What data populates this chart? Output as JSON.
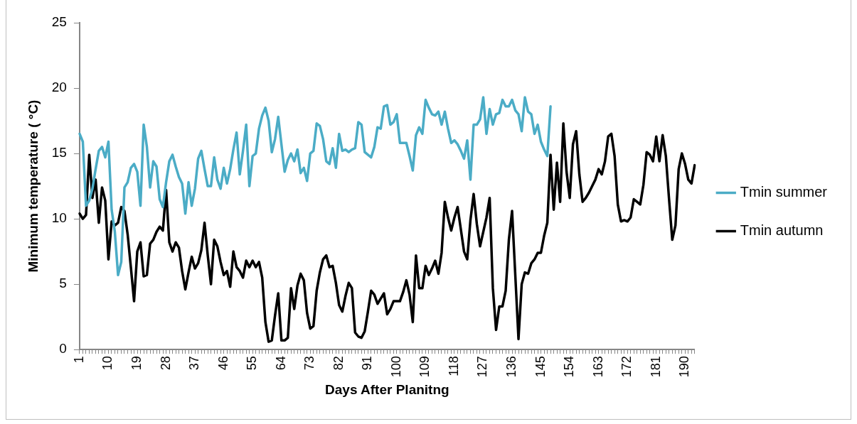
{
  "chart_data": {
    "type": "line",
    "xlabel": "Days After Planitng",
    "ylabel": "Minimum temperature ( °C)",
    "categories": [
      "1",
      null,
      null,
      null,
      null,
      null,
      null,
      null,
      null,
      "10",
      null,
      null,
      null,
      null,
      null,
      null,
      null,
      null,
      "19",
      null,
      null,
      null,
      null,
      null,
      null,
      null,
      null,
      "28",
      null,
      null,
      null,
      null,
      null,
      null,
      null,
      null,
      "37",
      null,
      null,
      null,
      null,
      null,
      null,
      null,
      null,
      "46",
      null,
      null,
      null,
      null,
      null,
      null,
      null,
      null,
      "55",
      null,
      null,
      null,
      null,
      null,
      null,
      null,
      null,
      "64",
      null,
      null,
      null,
      null,
      null,
      null,
      null,
      null,
      "73",
      null,
      null,
      null,
      null,
      null,
      null,
      null,
      null,
      "82",
      null,
      null,
      null,
      null,
      null,
      null,
      null,
      null,
      "91",
      null,
      null,
      null,
      null,
      null,
      null,
      null,
      null,
      "100",
      null,
      null,
      null,
      null,
      null,
      null,
      null,
      null,
      "109",
      null,
      null,
      null,
      null,
      null,
      null,
      null,
      null,
      "118",
      null,
      null,
      null,
      null,
      null,
      null,
      null,
      null,
      "127",
      null,
      null,
      null,
      null,
      null,
      null,
      null,
      null,
      "136",
      null,
      null,
      null,
      null,
      null,
      null,
      null,
      null,
      "145",
      null,
      null,
      null,
      null,
      null,
      null,
      null,
      null,
      "154",
      null,
      null,
      null,
      null,
      null,
      null,
      null,
      null,
      "163",
      null,
      null,
      null,
      null,
      null,
      null,
      null,
      null,
      "172",
      null,
      null,
      null,
      null,
      null,
      null,
      null,
      null,
      "181",
      null,
      null,
      null,
      null,
      null,
      null,
      null,
      null,
      "190",
      null,
      null,
      null
    ],
    "series": [
      {
        "name": "Tmin summer",
        "color": "#4bacc6",
        "values": [
          16.5,
          15.9,
          11.0,
          11.4,
          12.3,
          13.8,
          15.2,
          15.5,
          14.7,
          15.9,
          10.7,
          9.0,
          5.7,
          6.7,
          12.4,
          12.8,
          13.9,
          14.2,
          13.6,
          11.0,
          17.2,
          15.5,
          12.4,
          14.4,
          14.0,
          11.5,
          10.9,
          12.8,
          14.4,
          14.9,
          14.0,
          13.2,
          12.7,
          10.4,
          12.8,
          11.0,
          12.3,
          14.6,
          15.2,
          13.8,
          12.5,
          12.5,
          14.7,
          13.0,
          12.3,
          13.9,
          12.7,
          13.8,
          15.3,
          16.6,
          13.4,
          15.2,
          17.2,
          12.5,
          14.8,
          15.0,
          16.9,
          17.9,
          18.5,
          17.5,
          15.1,
          16.1,
          17.8,
          15.7,
          13.6,
          14.5,
          15.0,
          14.4,
          15.3,
          13.5,
          13.9,
          12.9,
          15.0,
          15.2,
          17.3,
          17.1,
          16.1,
          14.4,
          14.2,
          15.4,
          13.9,
          16.5,
          15.2,
          15.3,
          15.1,
          15.3,
          15.4,
          17.4,
          17.2,
          15.1,
          14.9,
          14.7,
          15.5,
          17.0,
          16.9,
          18.6,
          18.7,
          17.2,
          17.4,
          18.0,
          15.8,
          15.8,
          15.8,
          14.8,
          13.7,
          16.4,
          17.0,
          16.5,
          19.1,
          18.5,
          18.0,
          17.9,
          18.2,
          17.2,
          18.2,
          16.9,
          15.8,
          16.0,
          15.7,
          15.2,
          14.6,
          16.0,
          13.0,
          17.2,
          17.2,
          17.6,
          19.3,
          16.5,
          18.4,
          17.2,
          18.0,
          18.1,
          19.1,
          18.6,
          18.6,
          19.1,
          18.3,
          18.0,
          16.7,
          19.3,
          18.2,
          18.0,
          16.5,
          17.2,
          15.9,
          15.3,
          14.8,
          18.6,
          null,
          null,
          null,
          null,
          null,
          null,
          null,
          null,
          null,
          null,
          null,
          null,
          null,
          null,
          null,
          null,
          null,
          null,
          null,
          null,
          null,
          null,
          null,
          null,
          null,
          null,
          null,
          null,
          null,
          null,
          null,
          null,
          null,
          null,
          null,
          null,
          null,
          null,
          null,
          null,
          null,
          null,
          null,
          null,
          null
        ]
      },
      {
        "name": "Tmin autumn",
        "color": "#000000",
        "values": [
          10.4,
          10.0,
          10.3,
          14.9,
          11.6,
          13.0,
          9.7,
          12.4,
          11.4,
          6.9,
          9.8,
          9.5,
          9.7,
          10.9,
          10.6,
          8.8,
          6.3,
          3.7,
          7.5,
          8.2,
          5.6,
          5.7,
          8.1,
          8.4,
          9.0,
          9.4,
          9.1,
          12.2,
          8.2,
          7.5,
          8.2,
          7.8,
          6.0,
          4.6,
          5.9,
          7.1,
          6.2,
          6.6,
          7.6,
          9.7,
          7.2,
          5.0,
          8.4,
          7.9,
          6.7,
          5.7,
          6.0,
          4.8,
          7.5,
          6.3,
          6.0,
          5.5,
          6.8,
          6.3,
          6.8,
          6.3,
          6.7,
          5.5,
          2.1,
          0.6,
          0.7,
          2.6,
          4.3,
          0.7,
          0.7,
          0.9,
          4.7,
          3.1,
          4.9,
          5.8,
          5.3,
          2.8,
          1.6,
          1.8,
          4.5,
          5.9,
          6.9,
          7.2,
          6.3,
          6.4,
          5.1,
          3.4,
          2.9,
          4.1,
          5.1,
          4.7,
          1.3,
          1.0,
          0.9,
          1.4,
          2.9,
          4.5,
          4.2,
          3.5,
          3.9,
          4.3,
          2.7,
          3.1,
          3.7,
          3.7,
          3.7,
          4.4,
          5.3,
          4.2,
          2.1,
          7.2,
          4.7,
          4.7,
          6.4,
          5.7,
          6.2,
          6.8,
          5.8,
          7.4,
          11.3,
          10.1,
          9.1,
          10.1,
          10.9,
          9.2,
          7.5,
          6.9,
          9.9,
          11.9,
          9.6,
          7.9,
          9.0,
          10.1,
          11.6,
          4.7,
          1.5,
          3.3,
          3.3,
          4.5,
          8.4,
          10.6,
          5.7,
          0.8,
          5.0,
          5.9,
          5.8,
          6.6,
          6.9,
          7.4,
          7.4,
          8.7,
          9.7,
          14.9,
          10.7,
          14.3,
          11.3,
          17.3,
          13.6,
          11.6,
          15.7,
          16.7,
          13.4,
          11.3,
          11.6,
          12.0,
          12.5,
          13.0,
          13.8,
          13.4,
          14.4,
          16.3,
          16.5,
          14.8,
          11.1,
          9.8,
          9.9,
          9.8,
          10.1,
          11.5,
          11.3,
          11.1,
          12.6,
          15.1,
          14.9,
          14.4,
          16.3,
          14.4,
          16.4,
          14.8,
          11.5,
          8.4,
          9.5,
          13.8,
          15.0,
          14.2,
          13.0,
          12.7,
          14.1
        ]
      }
    ],
    "ylim": [
      0,
      25
    ],
    "yticks": [
      0,
      5,
      10,
      15,
      20,
      25
    ],
    "grid": false,
    "legend": "right",
    "marker": "none",
    "line_style": "solid"
  }
}
